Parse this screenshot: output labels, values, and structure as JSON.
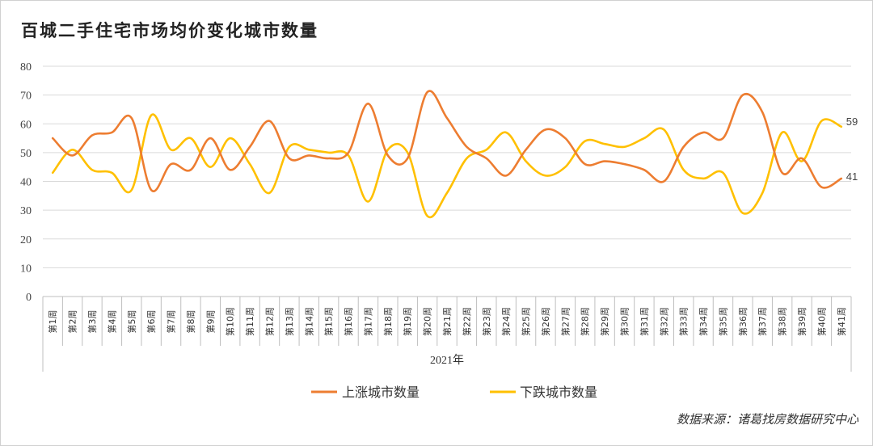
{
  "title": "百城二手住宅市场均价变化城市数量",
  "source": "数据来源：诸葛找房数据研究中心",
  "chart_data": {
    "type": "line",
    "group_label": "2021年",
    "categories": [
      "第1周",
      "第2周",
      "第3周",
      "第4周",
      "第5周",
      "第6周",
      "第7周",
      "第8周",
      "第9周",
      "第10周",
      "第11周",
      "第12周",
      "第13周",
      "第14周",
      "第15周",
      "第16周",
      "第17周",
      "第18周",
      "第19周",
      "第20周",
      "第21周",
      "第22周",
      "第23周",
      "第24周",
      "第25周",
      "第26周",
      "第27周",
      "第28周",
      "第29周",
      "第30周",
      "第31周",
      "第32周",
      "第33周",
      "第34周",
      "第35周",
      "第36周",
      "第37周",
      "第38周",
      "第39周",
      "第40周",
      "第41周"
    ],
    "ylim": [
      0,
      80
    ],
    "yticks": [
      0,
      10,
      20,
      30,
      40,
      50,
      60,
      70,
      80
    ],
    "grid": true,
    "legend_position": "bottom",
    "series": [
      {
        "name": "上涨城市数量",
        "color": "#ED7D31",
        "values": [
          55,
          49,
          56,
          57,
          62,
          37,
          46,
          44,
          55,
          44,
          52,
          61,
          48,
          49,
          48,
          50,
          67,
          49,
          48,
          71,
          62,
          52,
          48,
          42,
          51,
          58,
          55,
          46,
          47,
          46,
          44,
          40,
          52,
          57,
          55,
          70,
          64,
          43,
          48,
          38,
          41
        ],
        "end_label": "41"
      },
      {
        "name": "下跌城市数量",
        "color": "#FFC000",
        "values": [
          43,
          51,
          44,
          43,
          37,
          63,
          51,
          55,
          45,
          55,
          46,
          36,
          52,
          51,
          50,
          49,
          33,
          51,
          50,
          28,
          36,
          48,
          51,
          57,
          47,
          42,
          45,
          54,
          53,
          52,
          55,
          58,
          44,
          41,
          43,
          29,
          36,
          57,
          47,
          61,
          59
        ],
        "end_label": "59"
      }
    ]
  }
}
